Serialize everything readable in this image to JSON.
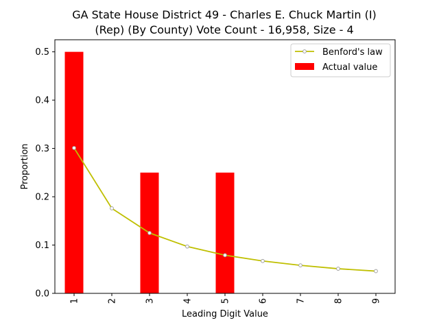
{
  "chart_data": {
    "type": "bar",
    "title_lines": [
      "GA State House District 49 - Charles E. Chuck Martin (I)",
      "(Rep) (By County) Vote Count - 16,958, Size - 4"
    ],
    "xlabel": "Leading Digit Value",
    "ylabel": "Proportion",
    "categories": [
      "1",
      "2",
      "3",
      "4",
      "5",
      "6",
      "7",
      "8",
      "9"
    ],
    "ylim": [
      0,
      0.525
    ],
    "yticks": [
      0.0,
      0.1,
      0.2,
      0.3,
      0.4,
      0.5
    ],
    "ytick_labels": [
      "0.0",
      "0.1",
      "0.2",
      "0.3",
      "0.4",
      "0.5"
    ],
    "grid": false,
    "legend_placement": "top-right",
    "series": [
      {
        "name": "Benford's law",
        "kind": "line",
        "color": "#bfbf00",
        "marker_color": "#a0a0a0",
        "values": [
          0.301,
          0.176,
          0.125,
          0.097,
          0.079,
          0.067,
          0.058,
          0.051,
          0.046
        ]
      },
      {
        "name": "Actual value",
        "kind": "bar",
        "color": "#ff0000",
        "values": [
          0.5,
          0.0,
          0.25,
          0.0,
          0.25,
          0.0,
          0.0,
          0.0,
          0.0
        ]
      }
    ]
  }
}
